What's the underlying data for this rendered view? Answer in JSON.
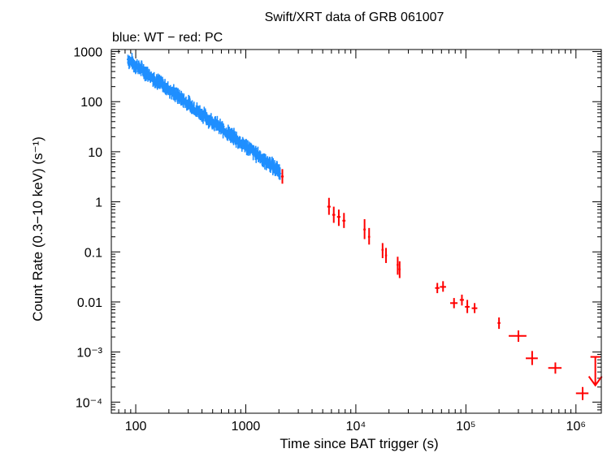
{
  "chart_data": {
    "type": "scatter",
    "title": "Swift/XRT data of GRB 061007",
    "subtitle": "blue: WT − red: PC",
    "xlabel": "Time since BAT trigger (s)",
    "ylabel": "Count Rate (0.3−10 keV) (s⁻¹)",
    "x_scale": "log",
    "y_scale": "log",
    "xlim": [
      60,
      1700000
    ],
    "ylim": [
      6e-05,
      1100
    ],
    "x_ticks": [
      {
        "value": 100,
        "label": "100"
      },
      {
        "value": 1000,
        "label": "1000"
      },
      {
        "value": 10000,
        "label": "10⁴"
      },
      {
        "value": 100000,
        "label": "10⁵"
      },
      {
        "value": 1000000,
        "label": "10⁶"
      }
    ],
    "y_ticks": [
      {
        "value": 1000,
        "label": "1000"
      },
      {
        "value": 100,
        "label": "100"
      },
      {
        "value": 10,
        "label": "10"
      },
      {
        "value": 1,
        "label": "1"
      },
      {
        "value": 0.1,
        "label": "0.1"
      },
      {
        "value": 0.01,
        "label": "0.01"
      },
      {
        "value": 0.001,
        "label": "10⁻³"
      },
      {
        "value": 0.0001,
        "label": "10⁻⁴"
      }
    ],
    "grid": false,
    "series": [
      {
        "mode": "WT",
        "color": "#1f8fff",
        "x_range": [
          85,
          2050
        ],
        "y_start": 700,
        "y_end": 4,
        "note": "dense continuous light curve"
      },
      {
        "mode": "PC",
        "color": "#ff0000",
        "points": [
          {
            "x": 2150,
            "y": 3.2,
            "xerr": 60,
            "ylo": 2.3,
            "yhi": 4.5
          },
          {
            "x": 5700,
            "y": 0.8,
            "xerr": 200,
            "ylo": 0.55,
            "yhi": 1.2
          },
          {
            "x": 6300,
            "y": 0.55,
            "xerr": 200,
            "ylo": 0.38,
            "yhi": 0.8
          },
          {
            "x": 7000,
            "y": 0.5,
            "xerr": 250,
            "ylo": 0.33,
            "yhi": 0.7
          },
          {
            "x": 7800,
            "y": 0.42,
            "xerr": 250,
            "ylo": 0.3,
            "yhi": 0.6
          },
          {
            "x": 12000,
            "y": 0.28,
            "xerr": 300,
            "ylo": 0.18,
            "yhi": 0.45
          },
          {
            "x": 13200,
            "y": 0.2,
            "xerr": 300,
            "ylo": 0.14,
            "yhi": 0.3
          },
          {
            "x": 17500,
            "y": 0.11,
            "xerr": 400,
            "ylo": 0.075,
            "yhi": 0.15
          },
          {
            "x": 18800,
            "y": 0.085,
            "xerr": 400,
            "ylo": 0.06,
            "yhi": 0.12
          },
          {
            "x": 24000,
            "y": 0.055,
            "xerr": 500,
            "ylo": 0.035,
            "yhi": 0.08
          },
          {
            "x": 25000,
            "y": 0.045,
            "xerr": 500,
            "ylo": 0.03,
            "yhi": 0.065
          },
          {
            "x": 55000,
            "y": 0.019,
            "xerr": 2500,
            "ylo": 0.015,
            "yhi": 0.024
          },
          {
            "x": 62000,
            "y": 0.02,
            "xerr": 4000,
            "ylo": 0.016,
            "yhi": 0.026
          },
          {
            "x": 78000,
            "y": 0.0095,
            "xerr": 6000,
            "ylo": 0.0075,
            "yhi": 0.012
          },
          {
            "x": 92000,
            "y": 0.011,
            "xerr": 4000,
            "ylo": 0.0085,
            "yhi": 0.014
          },
          {
            "x": 103000,
            "y": 0.008,
            "xerr": 5000,
            "ylo": 0.006,
            "yhi": 0.011
          },
          {
            "x": 120000,
            "y": 0.0075,
            "xerr": 7000,
            "ylo": 0.006,
            "yhi": 0.0095
          },
          {
            "x": 200000,
            "y": 0.0038,
            "xerr": 6000,
            "ylo": 0.0029,
            "yhi": 0.0049
          },
          {
            "x": 300000,
            "y": 0.0021,
            "xerr": 55000,
            "ylo": 0.0016,
            "yhi": 0.0027
          },
          {
            "x": 400000,
            "y": 0.00075,
            "xerr": 50000,
            "ylo": 0.00055,
            "yhi": 0.00105
          },
          {
            "x": 650000,
            "y": 0.00048,
            "xerr": 90000,
            "ylo": 0.00037,
            "yhi": 0.00062
          },
          {
            "x": 1150000,
            "y": 0.00015,
            "xerr": 150000,
            "ylo": 0.00011,
            "yhi": 0.0002
          }
        ],
        "upper_limits": [
          {
            "x": 1500000,
            "y": 0.0008
          }
        ]
      }
    ]
  }
}
